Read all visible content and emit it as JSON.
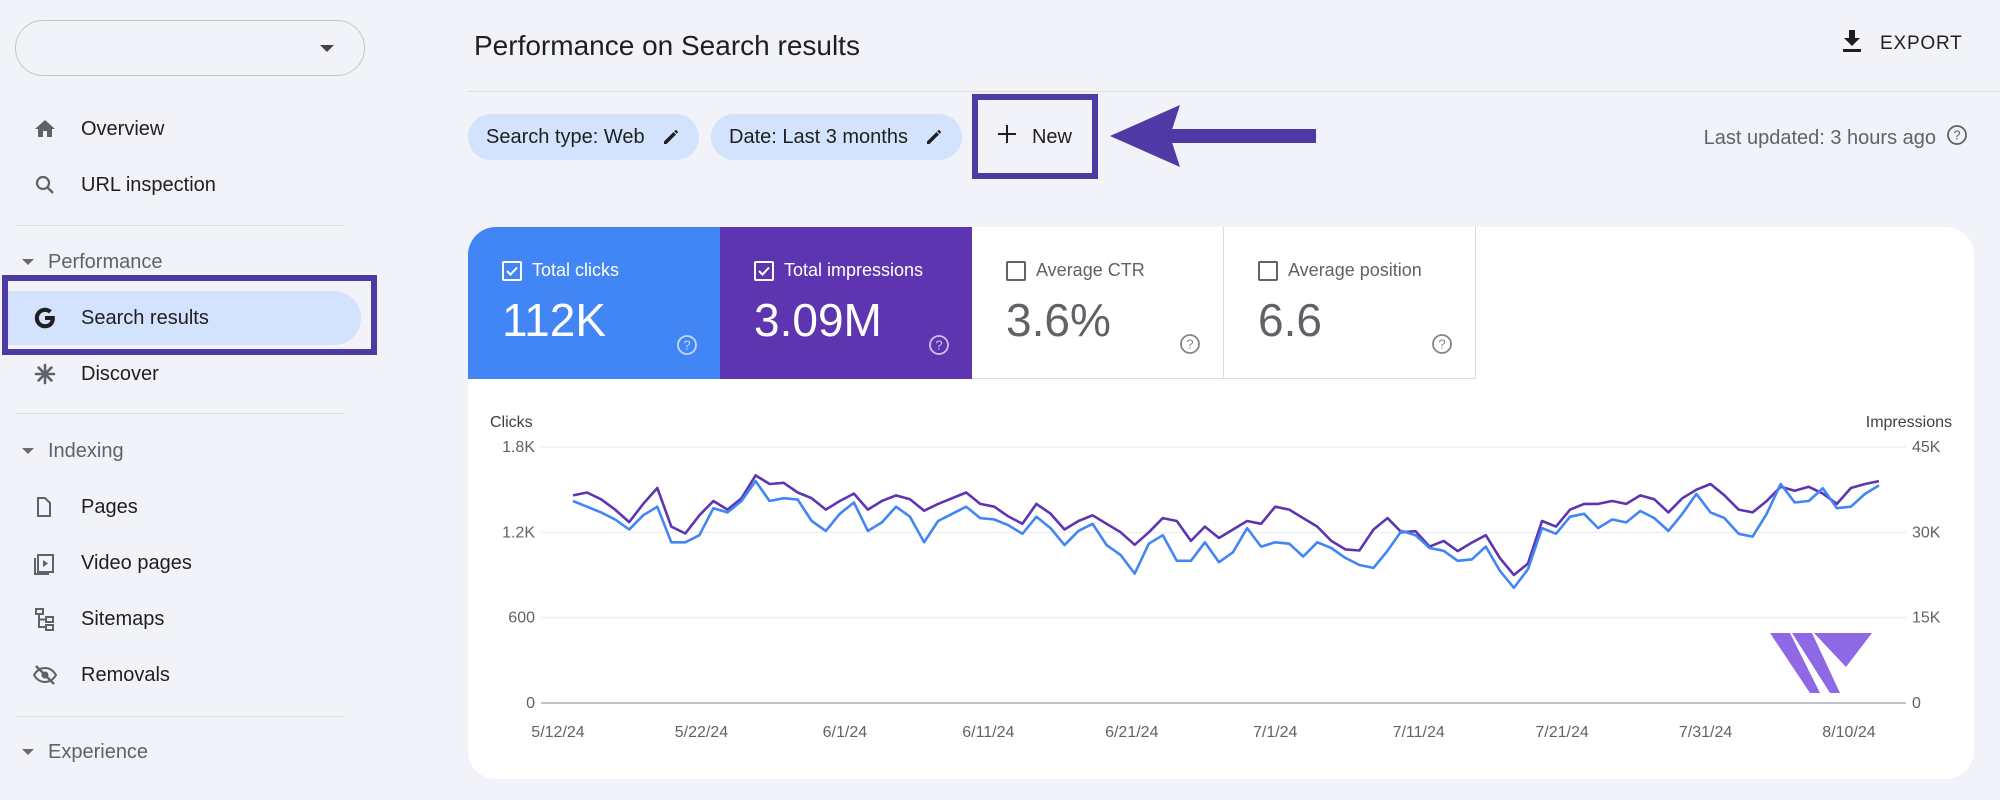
{
  "sidebar": {
    "property_value": "",
    "items_top": [
      {
        "label": "Overview",
        "icon": "home-icon"
      },
      {
        "label": "URL inspection",
        "icon": "search-icon"
      }
    ],
    "sections": [
      {
        "title": "Performance",
        "items": [
          {
            "label": "Search results",
            "icon": "google-g-icon",
            "active": true
          },
          {
            "label": "Discover",
            "icon": "asterisk-icon"
          }
        ]
      },
      {
        "title": "Indexing",
        "items": [
          {
            "label": "Pages",
            "icon": "pages-icon"
          },
          {
            "label": "Video pages",
            "icon": "video-pages-icon"
          },
          {
            "label": "Sitemaps",
            "icon": "sitemaps-icon"
          },
          {
            "label": "Removals",
            "icon": "removals-icon"
          }
        ]
      },
      {
        "title": "Experience",
        "items": []
      }
    ]
  },
  "header": {
    "title": "Performance on Search results",
    "export_label": "EXPORT"
  },
  "filters": {
    "search_type": "Search type: Web",
    "date": "Date: Last 3 months",
    "new_label": "New",
    "last_updated": "Last updated: 3 hours ago"
  },
  "metrics": [
    {
      "label": "Total clicks",
      "value": "112K",
      "checked": true,
      "color": "#4285f4"
    },
    {
      "label": "Total impressions",
      "value": "3.09M",
      "checked": true,
      "color": "#5e35b1"
    },
    {
      "label": "Average CTR",
      "value": "3.6%",
      "checked": false
    },
    {
      "label": "Average position",
      "value": "6.6",
      "checked": false
    }
  ],
  "chart_data": {
    "type": "line",
    "ylabel_left": "Clicks",
    "ylabel_right": "Impressions",
    "y_left_ticks": [
      "0",
      "600",
      "1.2K",
      "1.8K"
    ],
    "y_right_ticks": [
      "0",
      "15K",
      "30K",
      "45K"
    ],
    "ylim_left": [
      0,
      1800
    ],
    "ylim_right": [
      0,
      45000
    ],
    "x_ticks": [
      "5/12/24",
      "5/22/24",
      "6/1/24",
      "6/11/24",
      "6/21/24",
      "7/1/24",
      "7/11/24",
      "7/21/24",
      "7/31/24",
      "8/10/24"
    ],
    "x_start": "5/12/24",
    "x_end": "8/10/24",
    "grid": true,
    "series": [
      {
        "name": "Clicks",
        "axis": "left",
        "color": "#4285f4",
        "values": [
          1420,
          1380,
          1340,
          1290,
          1220,
          1320,
          1380,
          1130,
          1130,
          1180,
          1370,
          1340,
          1420,
          1560,
          1420,
          1440,
          1430,
          1280,
          1210,
          1330,
          1410,
          1210,
          1270,
          1380,
          1310,
          1130,
          1280,
          1330,
          1380,
          1300,
          1290,
          1250,
          1190,
          1310,
          1230,
          1110,
          1210,
          1260,
          1110,
          1040,
          910,
          1120,
          1180,
          1000,
          1000,
          1130,
          990,
          1060,
          1230,
          1100,
          1130,
          1120,
          1030,
          1130,
          1090,
          1020,
          970,
          950,
          1070,
          1210,
          1180,
          1090,
          1070,
          1000,
          1010,
          1100,
          930,
          810,
          940,
          1230,
          1190,
          1310,
          1330,
          1230,
          1290,
          1270,
          1350,
          1300,
          1210,
          1330,
          1470,
          1340,
          1300,
          1190,
          1170,
          1330,
          1540,
          1410,
          1420,
          1510,
          1370,
          1380,
          1470,
          1530
        ]
      },
      {
        "name": "Impressions",
        "axis": "right",
        "color": "#5e35b1",
        "values": [
          36500,
          37000,
          35800,
          34000,
          31800,
          35000,
          37800,
          31000,
          29800,
          33000,
          35500,
          34000,
          36000,
          40000,
          38500,
          38700,
          37000,
          36000,
          34000,
          35500,
          36800,
          34000,
          35500,
          36500,
          35800,
          33800,
          35000,
          36000,
          37000,
          35000,
          34500,
          32800,
          31500,
          35000,
          33300,
          30500,
          32000,
          33000,
          31500,
          30000,
          27800,
          30000,
          32500,
          32000,
          28500,
          31000,
          29000,
          30500,
          32000,
          31500,
          34500,
          34000,
          32500,
          31000,
          28500,
          27000,
          26800,
          30500,
          32500,
          30000,
          30200,
          27500,
          28500,
          26700,
          28200,
          29500,
          25500,
          22500,
          24500,
          32000,
          31000,
          34000,
          35000,
          35000,
          35500,
          35000,
          36500,
          35800,
          33500,
          36000,
          37500,
          38500,
          36500,
          34000,
          33500,
          35500,
          38000,
          37300,
          38000,
          36800,
          35000,
          37800,
          38500,
          39000
        ]
      }
    ]
  },
  "watermark": {
    "letter": "W"
  }
}
